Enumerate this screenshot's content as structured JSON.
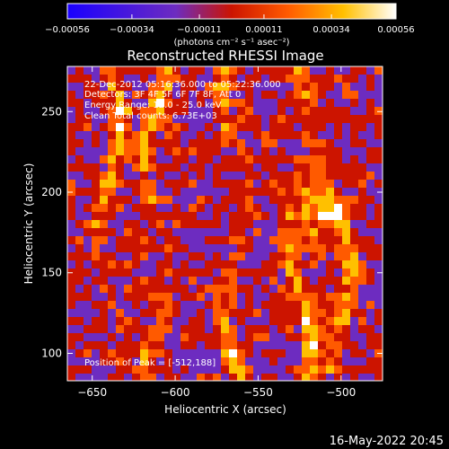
{
  "chart_data": {
    "type": "heatmap",
    "title": "Reconstructed RHESSI Image",
    "xlabel": "Heliocentric X (arcsec)",
    "ylabel": "Heliocentric Y (arcsec)",
    "xlim": [
      -665,
      -475
    ],
    "ylim": [
      83,
      278
    ],
    "x_ticks": [
      -650,
      -600,
      -550,
      -500
    ],
    "x_tick_labels": [
      "−650",
      "−600",
      "−550",
      "−500"
    ],
    "y_ticks": [
      100,
      150,
      200,
      250
    ],
    "y_tick_labels": [
      "100",
      "150",
      "200",
      "250"
    ],
    "colormap": [
      "#000000",
      "#1a00ff",
      "#6d2cc0",
      "#cc1400",
      "#ff5a00",
      "#ffc000",
      "#ffffff"
    ],
    "colorbar": {
      "min": -0.00056,
      "max": 0.00056,
      "ticks": [
        -0.00056,
        -0.00034,
        -0.00011,
        0.00011,
        0.00034,
        0.00056
      ],
      "tick_labels": [
        "−0.00056",
        "−0.00034",
        "−0.00011",
        "0.00011",
        "0.00034",
        "0.00056"
      ],
      "units": "(photons cm⁻² s⁻¹ asec⁻²)"
    },
    "annotations": [
      "22-Dec-2012 05:16:36.000 to 05:22:36.000",
      "Detectors: 3F 4F 5F 6F 7F 8F, Att 0",
      "Energy Range: 12.0 - 25.0 keV",
      "Clean     Total counts: 6.73E+03"
    ],
    "peak_label": "Position of Peak = [-512,188]",
    "peak": [
      -512,
      188
    ],
    "grid": false
  },
  "footer": {
    "timestamp": "16-May-2022 20:45"
  }
}
